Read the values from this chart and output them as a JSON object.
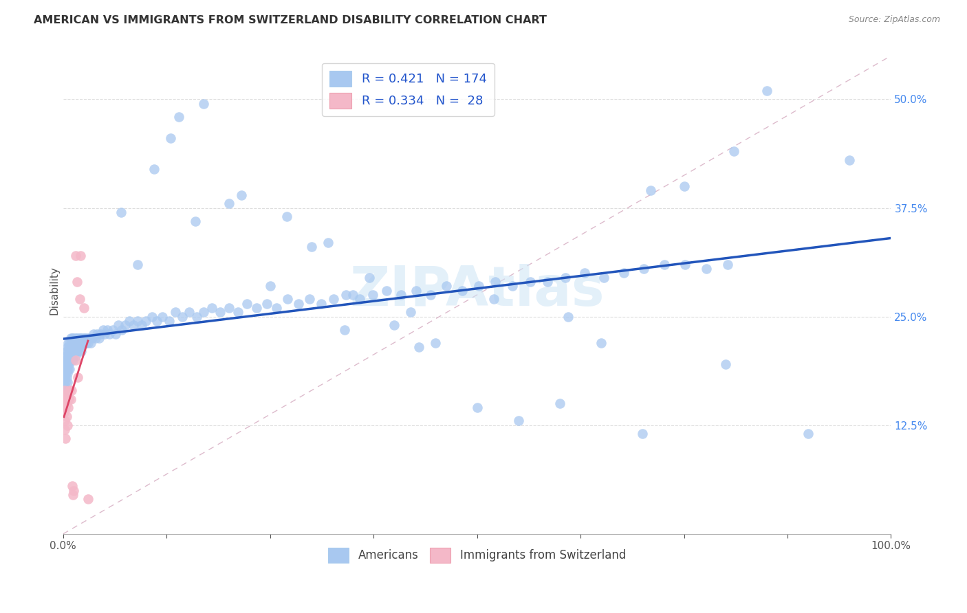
{
  "title": "AMERICAN VS IMMIGRANTS FROM SWITZERLAND DISABILITY CORRELATION CHART",
  "source": "Source: ZipAtlas.com",
  "ylabel": "Disability",
  "americans_color": "#a8c8f0",
  "swiss_color": "#f4b8c8",
  "trendline_americans_color": "#2255bb",
  "trendline_swiss_color": "#dd4466",
  "R_americans": 0.421,
  "N_americans": 174,
  "R_swiss": 0.334,
  "N_swiss": 28,
  "watermark": "ZIPAtlas",
  "legend_label_americans": "Americans",
  "legend_label_swiss": "Immigrants from Switzerland",
  "ytick_labels": [
    "12.5%",
    "25.0%",
    "37.5%",
    "50.0%"
  ],
  "yticks": [
    0.125,
    0.25,
    0.375,
    0.5
  ],
  "americans_x": [
    0.001,
    0.001,
    0.001,
    0.002,
    0.002,
    0.002,
    0.002,
    0.002,
    0.003,
    0.003,
    0.003,
    0.003,
    0.003,
    0.004,
    0.004,
    0.004,
    0.004,
    0.005,
    0.005,
    0.005,
    0.005,
    0.005,
    0.006,
    0.006,
    0.006,
    0.006,
    0.007,
    0.007,
    0.007,
    0.008,
    0.008,
    0.008,
    0.008,
    0.009,
    0.009,
    0.009,
    0.01,
    0.01,
    0.01,
    0.011,
    0.011,
    0.011,
    0.012,
    0.012,
    0.012,
    0.013,
    0.013,
    0.014,
    0.014,
    0.015,
    0.015,
    0.015,
    0.016,
    0.016,
    0.017,
    0.017,
    0.018,
    0.018,
    0.019,
    0.019,
    0.02,
    0.021,
    0.021,
    0.022,
    0.022,
    0.023,
    0.024,
    0.025,
    0.026,
    0.027,
    0.028,
    0.029,
    0.03,
    0.032,
    0.033,
    0.035,
    0.037,
    0.039,
    0.041,
    0.043,
    0.045,
    0.048,
    0.05,
    0.053,
    0.056,
    0.06,
    0.063,
    0.067,
    0.071,
    0.075,
    0.08,
    0.085,
    0.09,
    0.095,
    0.1,
    0.107,
    0.113,
    0.12,
    0.128,
    0.136,
    0.144,
    0.152,
    0.161,
    0.17,
    0.18,
    0.19,
    0.2,
    0.211,
    0.222,
    0.234,
    0.246,
    0.258,
    0.271,
    0.284,
    0.298,
    0.312,
    0.327,
    0.342,
    0.358,
    0.374,
    0.391,
    0.408,
    0.426,
    0.444,
    0.463,
    0.482,
    0.502,
    0.522,
    0.543,
    0.564,
    0.585,
    0.607,
    0.63,
    0.653,
    0.677,
    0.701,
    0.726,
    0.751,
    0.777,
    0.803,
    0.2,
    0.3,
    0.4,
    0.5,
    0.6,
    0.7,
    0.8,
    0.85,
    0.55,
    0.45,
    0.35,
    0.65,
    0.75,
    0.9,
    0.95,
    0.13,
    0.16,
    0.25,
    0.34,
    0.43,
    0.52,
    0.61,
    0.71,
    0.81,
    0.07,
    0.09,
    0.11,
    0.14,
    0.17,
    0.215,
    0.27,
    0.32,
    0.37,
    0.42
  ],
  "americans_y": [
    0.195,
    0.185,
    0.175,
    0.2,
    0.19,
    0.18,
    0.17,
    0.165,
    0.205,
    0.195,
    0.185,
    0.175,
    0.165,
    0.21,
    0.2,
    0.19,
    0.18,
    0.215,
    0.205,
    0.195,
    0.185,
    0.175,
    0.22,
    0.21,
    0.2,
    0.19,
    0.215,
    0.205,
    0.195,
    0.22,
    0.21,
    0.2,
    0.19,
    0.225,
    0.215,
    0.205,
    0.22,
    0.21,
    0.2,
    0.225,
    0.215,
    0.205,
    0.22,
    0.21,
    0.2,
    0.225,
    0.215,
    0.22,
    0.21,
    0.225,
    0.215,
    0.205,
    0.22,
    0.21,
    0.225,
    0.215,
    0.22,
    0.21,
    0.225,
    0.215,
    0.22,
    0.225,
    0.215,
    0.22,
    0.21,
    0.225,
    0.22,
    0.225,
    0.22,
    0.225,
    0.22,
    0.225,
    0.22,
    0.225,
    0.22,
    0.225,
    0.23,
    0.225,
    0.23,
    0.225,
    0.23,
    0.235,
    0.23,
    0.235,
    0.23,
    0.235,
    0.23,
    0.24,
    0.235,
    0.24,
    0.245,
    0.24,
    0.245,
    0.24,
    0.245,
    0.25,
    0.245,
    0.25,
    0.245,
    0.255,
    0.25,
    0.255,
    0.25,
    0.255,
    0.26,
    0.255,
    0.26,
    0.255,
    0.265,
    0.26,
    0.265,
    0.26,
    0.27,
    0.265,
    0.27,
    0.265,
    0.27,
    0.275,
    0.27,
    0.275,
    0.28,
    0.275,
    0.28,
    0.275,
    0.285,
    0.28,
    0.285,
    0.29,
    0.285,
    0.29,
    0.29,
    0.295,
    0.3,
    0.295,
    0.3,
    0.305,
    0.31,
    0.31,
    0.305,
    0.31,
    0.38,
    0.33,
    0.24,
    0.145,
    0.15,
    0.115,
    0.195,
    0.51,
    0.13,
    0.22,
    0.275,
    0.22,
    0.4,
    0.115,
    0.43,
    0.455,
    0.36,
    0.285,
    0.235,
    0.215,
    0.27,
    0.25,
    0.395,
    0.44,
    0.37,
    0.31,
    0.42,
    0.48,
    0.495,
    0.39,
    0.365,
    0.335,
    0.295,
    0.255
  ],
  "swiss_x": [
    0.001,
    0.001,
    0.002,
    0.002,
    0.002,
    0.003,
    0.003,
    0.003,
    0.004,
    0.004,
    0.005,
    0.005,
    0.006,
    0.007,
    0.008,
    0.009,
    0.01,
    0.011,
    0.012,
    0.013,
    0.015,
    0.017,
    0.02,
    0.025,
    0.03,
    0.015,
    0.021,
    0.018
  ],
  "swiss_y": [
    0.155,
    0.14,
    0.165,
    0.13,
    0.12,
    0.16,
    0.145,
    0.11,
    0.15,
    0.135,
    0.155,
    0.125,
    0.145,
    0.155,
    0.165,
    0.155,
    0.165,
    0.055,
    0.045,
    0.05,
    0.2,
    0.29,
    0.27,
    0.26,
    0.04,
    0.32,
    0.32,
    0.18
  ]
}
